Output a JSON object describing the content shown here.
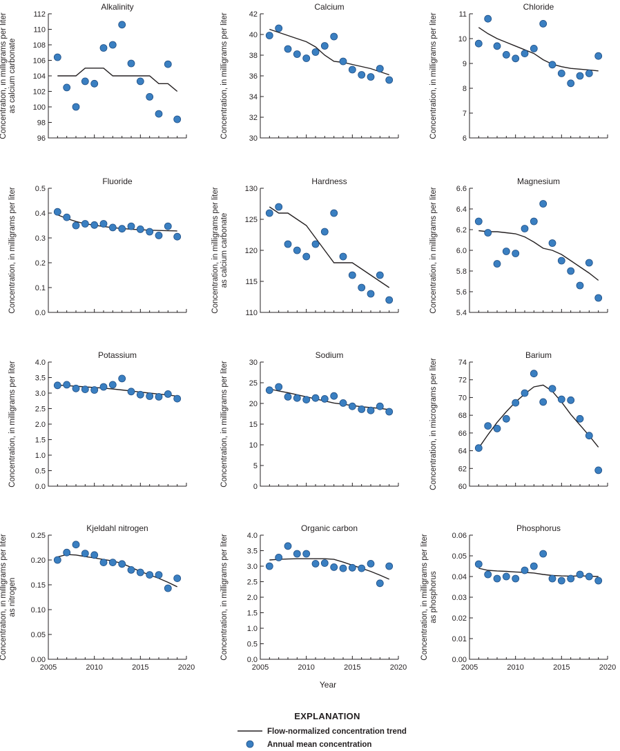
{
  "legend": {
    "title": "EXPLANATION",
    "line_label": "Flow-normalized concentration trend",
    "point_label": "Annual mean concentration"
  },
  "x_axis_title": "Year",
  "colors": {
    "point_fill": "#3a7fc1",
    "point_stroke": "#1f4f86",
    "line": "#231f20"
  },
  "chart_data": [
    {
      "type": "scatter",
      "title": "Alkalinity",
      "ylabel": [
        "Concentration, in milligrams per liter",
        "as calcium carbonate"
      ],
      "xlim": [
        2005,
        2020
      ],
      "ylim": [
        96,
        112
      ],
      "yticks": [
        96,
        98,
        100,
        102,
        104,
        106,
        108,
        110,
        112
      ],
      "ytick_decimals": 0,
      "show_xticklabels": false,
      "points": {
        "x": [
          2006,
          2007,
          2008,
          2009,
          2010,
          2011,
          2012,
          2013,
          2014,
          2015,
          2016,
          2017,
          2018,
          2019
        ],
        "y": [
          106.4,
          102.5,
          100.0,
          103.3,
          103.0,
          107.6,
          108.0,
          110.6,
          105.6,
          103.3,
          101.3,
          99.1,
          105.5,
          98.4
        ]
      },
      "trend": {
        "x": [
          2006,
          2007,
          2008,
          2009,
          2010,
          2011,
          2012,
          2013,
          2014,
          2015,
          2016,
          2017,
          2018,
          2019
        ],
        "y": [
          104,
          104,
          104,
          105,
          105,
          105,
          104,
          104,
          104,
          104,
          104,
          103,
          103,
          102
        ]
      }
    },
    {
      "type": "scatter",
      "title": "Calcium",
      "ylabel": [
        "Concentration, in milligrams per liter"
      ],
      "xlim": [
        2005,
        2020
      ],
      "ylim": [
        30,
        42
      ],
      "yticks": [
        30,
        32,
        34,
        36,
        38,
        40,
        42
      ],
      "ytick_decimals": 0,
      "show_xticklabels": false,
      "points": {
        "x": [
          2006,
          2007,
          2008,
          2009,
          2010,
          2011,
          2012,
          2013,
          2014,
          2015,
          2016,
          2017,
          2018,
          2019
        ],
        "y": [
          39.9,
          40.6,
          38.6,
          38.1,
          37.7,
          38.3,
          38.9,
          39.8,
          37.4,
          36.6,
          36.1,
          35.9,
          36.7,
          35.6
        ]
      },
      "trend": {
        "x": [
          2006,
          2007,
          2008,
          2009,
          2010,
          2011,
          2012,
          2013,
          2014,
          2015,
          2016,
          2017,
          2018,
          2019
        ],
        "y": [
          40.5,
          40.2,
          39.9,
          39.6,
          39.3,
          38.8,
          38.0,
          37.4,
          37.3,
          37.1,
          36.9,
          36.7,
          36.4,
          36.1
        ]
      }
    },
    {
      "type": "scatter",
      "title": "Chloride",
      "ylabel": [
        "Concentration, in milligrams per liter"
      ],
      "xlim": [
        2005,
        2020
      ],
      "ylim": [
        6,
        11
      ],
      "yticks": [
        6,
        7,
        8,
        9,
        10,
        11
      ],
      "ytick_decimals": 0,
      "show_xticklabels": false,
      "points": {
        "x": [
          2006,
          2007,
          2008,
          2009,
          2010,
          2011,
          2012,
          2013,
          2014,
          2015,
          2016,
          2017,
          2018,
          2019
        ],
        "y": [
          9.8,
          10.8,
          9.7,
          9.35,
          9.2,
          9.4,
          9.6,
          10.6,
          8.95,
          8.6,
          8.2,
          8.5,
          8.6,
          9.3
        ]
      },
      "trend": {
        "x": [
          2006,
          2007,
          2008,
          2009,
          2010,
          2011,
          2012,
          2013,
          2014,
          2015,
          2016,
          2017,
          2018,
          2019
        ],
        "y": [
          10.45,
          10.2,
          10.0,
          9.85,
          9.7,
          9.55,
          9.4,
          9.15,
          8.97,
          8.87,
          8.8,
          8.77,
          8.74,
          8.7
        ]
      }
    },
    {
      "type": "scatter",
      "title": "Fluoride",
      "ylabel": [
        "Concentration, in milligrams per liter"
      ],
      "xlim": [
        2005,
        2020
      ],
      "ylim": [
        0,
        0.5
      ],
      "yticks": [
        0,
        0.1,
        0.2,
        0.3,
        0.4,
        0.5
      ],
      "ytick_decimals": 1,
      "show_xticklabels": false,
      "points": {
        "x": [
          2006,
          2007,
          2008,
          2009,
          2010,
          2011,
          2012,
          2013,
          2014,
          2015,
          2016,
          2017,
          2018,
          2019
        ],
        "y": [
          0.405,
          0.383,
          0.35,
          0.357,
          0.352,
          0.357,
          0.342,
          0.337,
          0.347,
          0.335,
          0.325,
          0.31,
          0.347,
          0.305
        ]
      },
      "trend": {
        "x": [
          2006,
          2007,
          2008,
          2009,
          2010,
          2011,
          2012,
          2013,
          2014,
          2015,
          2016,
          2017,
          2018,
          2019
        ],
        "y": [
          0.393,
          0.378,
          0.366,
          0.357,
          0.351,
          0.346,
          0.341,
          0.338,
          0.335,
          0.333,
          0.331,
          0.33,
          0.329,
          0.328
        ]
      }
    },
    {
      "type": "scatter",
      "title": "Hardness",
      "ylabel": [
        "Concentration, in milligrams per liter",
        "as calcium carbonate"
      ],
      "xlim": [
        2005,
        2020
      ],
      "ylim": [
        110,
        130
      ],
      "yticks": [
        110,
        115,
        120,
        125,
        130
      ],
      "ytick_decimals": 0,
      "show_xticklabels": false,
      "points": {
        "x": [
          2006,
          2007,
          2008,
          2009,
          2010,
          2011,
          2012,
          2013,
          2014,
          2015,
          2016,
          2017,
          2018,
          2019
        ],
        "y": [
          126,
          127,
          121,
          120,
          119,
          121,
          123,
          126,
          119,
          116,
          114,
          113,
          116,
          112
        ]
      },
      "trend": {
        "x": [
          2006,
          2007,
          2008,
          2009,
          2010,
          2011,
          2012,
          2013,
          2014,
          2015,
          2016,
          2017,
          2018,
          2019
        ],
        "y": [
          127,
          126,
          126,
          125,
          124,
          122,
          120,
          118,
          118,
          118,
          117,
          116,
          115,
          114
        ]
      }
    },
    {
      "type": "scatter",
      "title": "Magnesium",
      "ylabel": [
        "Concentration, in milligrams per liter"
      ],
      "xlim": [
        2005,
        2020
      ],
      "ylim": [
        5.4,
        6.6
      ],
      "yticks": [
        5.4,
        5.6,
        5.8,
        6.0,
        6.2,
        6.4,
        6.6
      ],
      "ytick_decimals": 1,
      "show_xticklabels": false,
      "points": {
        "x": [
          2006,
          2007,
          2008,
          2009,
          2010,
          2011,
          2012,
          2013,
          2014,
          2015,
          2016,
          2017,
          2018,
          2019
        ],
        "y": [
          6.28,
          6.17,
          5.87,
          5.99,
          5.97,
          6.21,
          6.28,
          6.45,
          6.07,
          5.9,
          5.8,
          5.66,
          5.88,
          5.54
        ]
      },
      "trend": {
        "x": [
          2006,
          2007,
          2008,
          2009,
          2010,
          2011,
          2012,
          2013,
          2014,
          2015,
          2016,
          2017,
          2018,
          2019
        ],
        "y": [
          6.19,
          6.18,
          6.18,
          6.17,
          6.16,
          6.13,
          6.08,
          6.02,
          6.0,
          5.96,
          5.9,
          5.84,
          5.78,
          5.71
        ]
      }
    },
    {
      "type": "scatter",
      "title": "Potassium",
      "ylabel": [
        "Concentration, in milligrams per liter"
      ],
      "xlim": [
        2005,
        2020
      ],
      "ylim": [
        0,
        4
      ],
      "yticks": [
        0,
        0.5,
        1.0,
        1.5,
        2.0,
        2.5,
        3.0,
        3.5,
        4.0
      ],
      "ytick_decimals": 1,
      "show_xticklabels": false,
      "points": {
        "x": [
          2006,
          2007,
          2008,
          2009,
          2010,
          2011,
          2012,
          2013,
          2014,
          2015,
          2016,
          2017,
          2018,
          2019
        ],
        "y": [
          3.25,
          3.27,
          3.15,
          3.12,
          3.1,
          3.2,
          3.27,
          3.47,
          3.05,
          2.95,
          2.9,
          2.88,
          2.97,
          2.82
        ]
      },
      "trend": {
        "x": [
          2006,
          2007,
          2008,
          2009,
          2010,
          2011,
          2012,
          2013,
          2014,
          2015,
          2016,
          2017,
          2018,
          2019
        ],
        "y": [
          3.26,
          3.24,
          3.22,
          3.2,
          3.18,
          3.16,
          3.13,
          3.1,
          3.07,
          3.03,
          3.0,
          2.97,
          2.94,
          2.9
        ]
      }
    },
    {
      "type": "scatter",
      "title": "Sodium",
      "ylabel": [
        "Concentration, in milligrams per liter"
      ],
      "xlim": [
        2005,
        2020
      ],
      "ylim": [
        0,
        30
      ],
      "yticks": [
        0,
        5,
        10,
        15,
        20,
        25,
        30
      ],
      "ytick_decimals": 0,
      "show_xticklabels": false,
      "points": {
        "x": [
          2006,
          2007,
          2008,
          2009,
          2010,
          2011,
          2012,
          2013,
          2014,
          2015,
          2016,
          2017,
          2018,
          2019
        ],
        "y": [
          23.2,
          24.0,
          21.6,
          21.3,
          20.9,
          21.3,
          21.1,
          21.8,
          20.1,
          19.3,
          18.6,
          18.3,
          19.3,
          18.0
        ]
      },
      "trend": {
        "x": [
          2006,
          2007,
          2008,
          2009,
          2010,
          2011,
          2012,
          2013,
          2014,
          2015,
          2016,
          2017,
          2018,
          2019
        ],
        "y": [
          23.5,
          23.0,
          22.6,
          22.1,
          21.6,
          21.1,
          20.6,
          20.1,
          19.8,
          19.5,
          19.2,
          19.0,
          18.8,
          18.5
        ]
      }
    },
    {
      "type": "scatter",
      "title": "Barium",
      "ylabel": [
        "Concentration, in micrograms per liter"
      ],
      "xlim": [
        2005,
        2020
      ],
      "ylim": [
        60,
        74
      ],
      "yticks": [
        60,
        62,
        64,
        66,
        68,
        70,
        72,
        74
      ],
      "ytick_decimals": 0,
      "show_xticklabels": false,
      "points": {
        "x": [
          2006,
          2007,
          2008,
          2009,
          2010,
          2011,
          2012,
          2013,
          2014,
          2015,
          2016,
          2017,
          2018,
          2019
        ],
        "y": [
          64.3,
          66.8,
          66.5,
          67.6,
          69.4,
          70.5,
          72.7,
          69.5,
          71.0,
          69.8,
          69.7,
          67.6,
          65.7,
          61.8
        ]
      },
      "trend": {
        "x": [
          2006,
          2007,
          2008,
          2009,
          2010,
          2011,
          2012,
          2013,
          2014,
          2015,
          2016,
          2017,
          2018,
          2019
        ],
        "y": [
          64.3,
          65.8,
          67.2,
          68.4,
          69.5,
          70.4,
          71.2,
          71.4,
          70.7,
          69.5,
          68.1,
          66.9,
          65.7,
          64.4
        ]
      }
    },
    {
      "type": "scatter",
      "title": "Kjeldahl nitrogen",
      "ylabel": [
        "Concentration, in milligrams per liter",
        "as nitrogen"
      ],
      "xlim": [
        2005,
        2020
      ],
      "ylim": [
        0,
        0.25
      ],
      "yticks": [
        0,
        0.05,
        0.1,
        0.15,
        0.2,
        0.25
      ],
      "ytick_decimals": 2,
      "show_xticklabels": true,
      "points": {
        "x": [
          2006,
          2007,
          2008,
          2009,
          2010,
          2011,
          2012,
          2013,
          2014,
          2015,
          2016,
          2017,
          2018,
          2019
        ],
        "y": [
          0.2,
          0.215,
          0.231,
          0.213,
          0.21,
          0.195,
          0.195,
          0.192,
          0.18,
          0.175,
          0.17,
          0.17,
          0.143,
          0.163
        ]
      },
      "trend": {
        "x": [
          2006,
          2007,
          2008,
          2009,
          2010,
          2011,
          2012,
          2013,
          2014,
          2015,
          2016,
          2017,
          2018,
          2019
        ],
        "y": [
          0.206,
          0.211,
          0.21,
          0.207,
          0.204,
          0.201,
          0.198,
          0.193,
          0.185,
          0.177,
          0.17,
          0.163,
          0.155,
          0.146
        ]
      }
    },
    {
      "type": "scatter",
      "title": "Organic carbon",
      "ylabel": [
        "Concentration, in milligrams per liter"
      ],
      "xlim": [
        2005,
        2020
      ],
      "ylim": [
        0,
        4
      ],
      "yticks": [
        0,
        0.5,
        1.0,
        1.5,
        2.0,
        2.5,
        3.0,
        3.5,
        4.0
      ],
      "ytick_decimals": 1,
      "show_xticklabels": true,
      "points": {
        "x": [
          2006,
          2007,
          2008,
          2009,
          2010,
          2011,
          2012,
          2013,
          2014,
          2015,
          2016,
          2017,
          2018,
          2019
        ],
        "y": [
          3.0,
          3.28,
          3.65,
          3.4,
          3.4,
          3.08,
          3.1,
          2.97,
          2.93,
          2.95,
          2.93,
          3.08,
          2.45,
          3.0
        ]
      },
      "trend": {
        "x": [
          2006,
          2007,
          2008,
          2009,
          2010,
          2011,
          2012,
          2013,
          2014,
          2015,
          2016,
          2017,
          2018,
          2019
        ],
        "y": [
          3.2,
          3.22,
          3.23,
          3.24,
          3.24,
          3.24,
          3.24,
          3.22,
          3.13,
          3.03,
          2.93,
          2.83,
          2.71,
          2.58
        ]
      }
    },
    {
      "type": "scatter",
      "title": "Phosphorus",
      "ylabel": [
        "Concentration, in milligrams per liter",
        "as phosphorus"
      ],
      "xlim": [
        2005,
        2020
      ],
      "ylim": [
        0,
        0.06
      ],
      "yticks": [
        0,
        0.01,
        0.02,
        0.03,
        0.04,
        0.05,
        0.06
      ],
      "ytick_decimals": 2,
      "show_xticklabels": true,
      "points": {
        "x": [
          2006,
          2007,
          2008,
          2009,
          2010,
          2011,
          2012,
          2013,
          2014,
          2015,
          2016,
          2017,
          2018,
          2019
        ],
        "y": [
          0.046,
          0.041,
          0.039,
          0.04,
          0.039,
          0.043,
          0.045,
          0.051,
          0.039,
          0.038,
          0.039,
          0.041,
          0.04,
          0.038
        ]
      },
      "trend": {
        "x": [
          2006,
          2007,
          2008,
          2009,
          2010,
          2011,
          2012,
          2013,
          2014,
          2015,
          2016,
          2017,
          2018,
          2019
        ],
        "y": [
          0.044,
          0.043,
          0.0427,
          0.0425,
          0.0422,
          0.042,
          0.0417,
          0.041,
          0.0405,
          0.0403,
          0.0402,
          0.0403,
          0.0402,
          0.04
        ]
      }
    }
  ]
}
